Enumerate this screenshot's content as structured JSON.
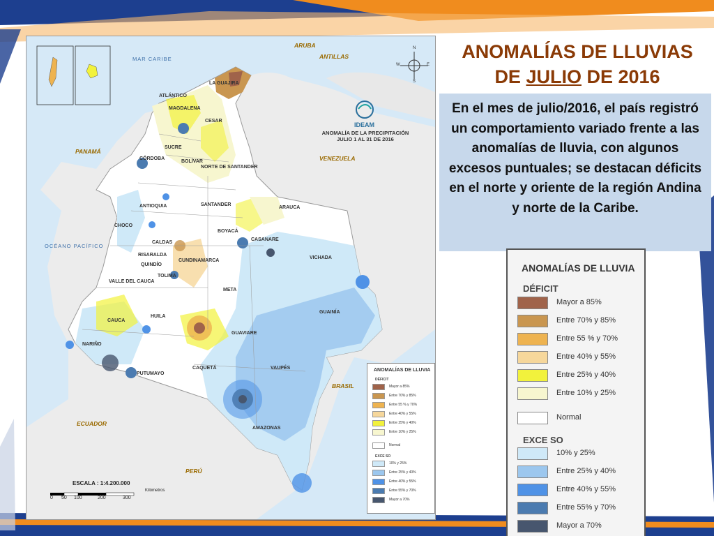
{
  "slide": {
    "title_line1": "ANOMALÍAS DE LLUVIAS",
    "title_line2_pre": "DE ",
    "title_line2_underlined": "JULIO",
    "title_line2_post": " DE 2016",
    "description": "En el mes de julio/2016, el país registró un comportamiento variado frente a las anomalías de lluvia, con algunos excesos puntuales; se destacan déficits en el norte y oriente de la región Andina y norte de la Caribe.",
    "colors": {
      "title": "#8a3a06",
      "box": "#c7d8eb",
      "stripe_blue": "#1d3f8f",
      "stripe_orange": "#f08c1e"
    }
  },
  "legend_big": {
    "title": "ANOMALÍAS DE LLUVIA",
    "deficit_label": "DÉFICIT",
    "deficit": [
      {
        "label": "Mayor a 85%",
        "color": "#a0634a"
      },
      {
        "label": "Entre 70% y 85%",
        "color": "#c99650"
      },
      {
        "label": "Entre 55 % y 70%",
        "color": "#eeb350"
      },
      {
        "label": "Entre 40% y 55%",
        "color": "#f6d79b"
      },
      {
        "label": "Entre 25% y 40%",
        "color": "#f2f23c"
      },
      {
        "label": "Entre 10% y 25%",
        "color": "#f7f6cf"
      }
    ],
    "normal": {
      "label": "Normal",
      "color": "#ffffff"
    },
    "exceso_label": "EXCE SO",
    "exceso": [
      {
        "label": "10% y 25%",
        "color": "#cfe9f8"
      },
      {
        "label": "Entre 25% y 40%",
        "color": "#9cc7ee"
      },
      {
        "label": "Entre 40% y 55%",
        "color": "#4f92e6"
      },
      {
        "label": "Entre 55% y 70%",
        "color": "#4b7bb0"
      },
      {
        "label": "Mayor a 70%",
        "color": "#47566e"
      }
    ]
  },
  "map": {
    "title_line1": "ANOMALÍA DE LA PRECIPITACIÓN",
    "title_line2": "JULIO 1 AL 31  DE 2016",
    "ideam": "IDEAM",
    "seas": {
      "caribe": "MAR CARIBE",
      "pacifico": "OCÉANO PACÍFICO"
    },
    "countries": {
      "aruba": "ARUBA",
      "antillas": "ANTILLAS",
      "panama": "PANAMÁ",
      "venezuela": "VENEZUELA",
      "brasil": "BRASIL",
      "ecuador": "ECUADOR",
      "peru": "PERÚ"
    },
    "departments": {
      "guajira": "LA GUAJIRA",
      "atlantico": "ATLÁNTICO",
      "magdalena": "MAGDALENA",
      "cesar": "CESAR",
      "sucre": "SUCRE",
      "cordoba": "CÓRDOBA",
      "bolivar": "BOLÍVAR",
      "norte_santander": "NORTE DE SANTANDER",
      "antioquia": "ANTIOQUIA",
      "santander": "SANTANDER",
      "arauca": "ARAUCA",
      "choco": "CHOCO",
      "boyaca": "BOYACÁ",
      "casanare": "CASANARE",
      "caldas": "CALDAS",
      "risaralda": "RISARALDA",
      "quindio": "QUINDÍO",
      "cundinamarca": "CUNDINAMARCA",
      "vichada": "VICHADA",
      "tolima": "TOLIMA",
      "valle": "VALLE DEL CAUCA",
      "meta": "META",
      "guainia": "GUAINÍA",
      "huila": "HUILA",
      "cauca": "CAUCA",
      "guaviare": "GUAVIARE",
      "narino": "NARIÑO",
      "caqueta": "CAQUETÁ",
      "vaupes": "VAUPÉS",
      "putumayo": "PUTUMAYO",
      "amazonas": "AMAZONAS"
    },
    "compass": {
      "n": "N",
      "s": "S",
      "e": "E",
      "w": "W"
    },
    "scale": {
      "label": "ESCALA : 1:4.200.000",
      "unit": "Kilómetros",
      "ticks": [
        "0",
        "50",
        "100",
        "200",
        "300"
      ]
    },
    "legend_small": {
      "title": "ANOMALÍAS DE LLUVIA",
      "deficit_label": "DÉFICIT",
      "normal_label": "Normal",
      "exceso_label": "EXCE SO",
      "deficit": [
        "Mayor a 85%",
        "Entre 70% y 85%",
        "Entre 55 % y 70%",
        "Entre 40% y 55%",
        "Entre 25% y 40%",
        "Entre 10% y 25%"
      ],
      "exceso": [
        "10% y 25%",
        "Entre 25% y 40%",
        "Entre 40% y 55%",
        "Entre 55% y 70%",
        "Mayor a 70%"
      ]
    }
  }
}
